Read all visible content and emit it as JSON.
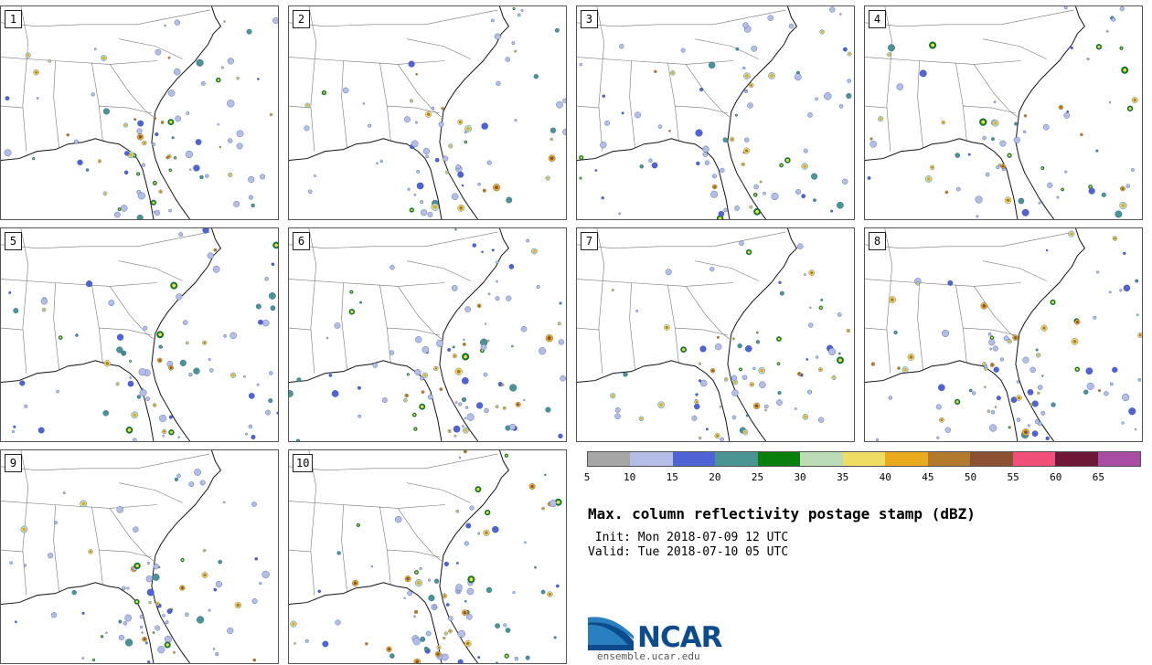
{
  "panels": [
    {
      "label": "1"
    },
    {
      "label": "2"
    },
    {
      "label": "3"
    },
    {
      "label": "4"
    },
    {
      "label": "5"
    },
    {
      "label": "6"
    },
    {
      "label": "7"
    },
    {
      "label": "8"
    },
    {
      "label": "9"
    },
    {
      "label": "10"
    }
  ],
  "colorbar": {
    "colors": [
      "#a6a6a6",
      "#b3bde6",
      "#5063d4",
      "#4a9494",
      "#0b7f0b",
      "#bcdcb5",
      "#eedc63",
      "#eaaa1e",
      "#b17a2c",
      "#8b5133",
      "#ef4f79",
      "#6e1837",
      "#a84da3"
    ],
    "ticks": [
      "5",
      "10",
      "15",
      "20",
      "25",
      "30",
      "35",
      "40",
      "45",
      "50",
      "55",
      "60",
      "65"
    ]
  },
  "title": "Max. column reflectivity postage stamp (dBZ)",
  "init": " Init: Mon 2018-07-09 12 UTC",
  "valid": "Valid: Tue 2018-07-10 05 UTC",
  "logo": {
    "text": "NCAR",
    "color": "#0d4c8c",
    "swoosh": "#2a7fc0"
  },
  "site": "ensemble.ucar.edu"
}
